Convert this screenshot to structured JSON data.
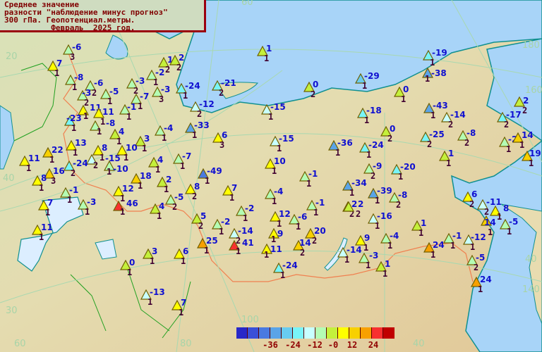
{
  "title": {
    "lines": [
      "Среднее значение",
      "разности \"наблюдение минус прогноз\"",
      "300 гПа. Геопотенциал.метры.",
      "          Февраль  2025 год."
    ]
  },
  "legend": {
    "colors": [
      "#2828c8",
      "#3a50d8",
      "#4a7ae0",
      "#5aa4e8",
      "#68ccf0",
      "#78f4f8",
      "#c8ffff",
      "#b4fcb4",
      "#c4f03c",
      "#ffff00",
      "#f8d000",
      "#f8a000",
      "#f83030",
      "#c00000"
    ],
    "tick_labels": [
      "-36",
      "-24",
      "-12",
      "-0",
      "12",
      "24"
    ]
  },
  "graticule_labels": [
    "20",
    "40",
    "60",
    "100",
    "140",
    "160",
    "180",
    "40",
    "30",
    "60",
    "80",
    "40"
  ],
  "stations": [
    {
      "value": -6,
      "count": 3
    },
    {
      "value": 7,
      "count": 1
    },
    {
      "value": -8,
      "count": 1
    },
    {
      "value": -6,
      "count": 2
    },
    {
      "value": -3,
      "count": 2
    },
    {
      "value": -5,
      "count": 1
    },
    {
      "value": 1,
      "count": 2
    },
    {
      "value": 2,
      "count": 2
    },
    {
      "value": -3,
      "count": 2
    },
    {
      "value": -2,
      "count": 1
    },
    {
      "value": -3,
      "count": 3
    },
    {
      "value": -7,
      "count": 1
    },
    {
      "value": -1,
      "count": 1
    },
    {
      "value": 11,
      "count": 1
    },
    {
      "value": 11,
      "count": 1
    },
    {
      "value": -23,
      "count": 1
    },
    {
      "value": -8,
      "count": 1
    },
    {
      "value": 4,
      "count": 1
    },
    {
      "value": 3,
      "count": 1
    },
    {
      "value": -4,
      "count": 1
    },
    {
      "value": 13,
      "count": 1
    },
    {
      "value": 8,
      "count": 1
    },
    {
      "value": -15,
      "count": 2
    },
    {
      "value": 10,
      "count": 1
    },
    {
      "value": 22,
      "count": 1
    },
    {
      "value": 11,
      "count": 1
    },
    {
      "value": -24,
      "count": 2
    },
    {
      "value": -10,
      "count": 1
    },
    {
      "value": 4,
      "count": 1
    },
    {
      "value": 16,
      "count": 3
    },
    {
      "value": 8,
      "count": 1
    },
    {
      "value": 18,
      "count": 1
    },
    {
      "value": 2,
      "count": 1
    },
    {
      "value": -1,
      "count": 1
    },
    {
      "value": -3,
      "count": 1
    },
    {
      "value": 7,
      "count": 1
    },
    {
      "value": 11,
      "count": 1
    },
    {
      "value": 12,
      "count": 1
    },
    {
      "value": 46,
      "count": 1
    },
    {
      "value": -5,
      "count": 2
    },
    {
      "value": 4,
      "count": 1
    },
    {
      "value": 3,
      "count": 1
    },
    {
      "value": 6,
      "count": 1
    },
    {
      "value": 0,
      "count": 1
    },
    {
      "value": -13,
      "count": 1
    },
    {
      "value": 7,
      "count": 1
    },
    {
      "value": 1,
      "count": 1
    },
    {
      "value": -24,
      "count": 1
    },
    {
      "value": -21,
      "count": 2
    },
    {
      "value": -12,
      "count": 2
    },
    {
      "value": 0,
      "count": 2
    },
    {
      "value": -15,
      "count": 1
    },
    {
      "value": -33,
      "count": 1
    },
    {
      "value": 6,
      "count": 3
    },
    {
      "value": -15,
      "count": 1
    },
    {
      "value": -36,
      "count": 1
    },
    {
      "value": -7,
      "count": 1
    },
    {
      "value": 10,
      "count": 1
    },
    {
      "value": -49,
      "count": 1
    },
    {
      "value": -1,
      "count": 1
    },
    {
      "value": 8,
      "count": 2
    },
    {
      "value": 7,
      "count": 1
    },
    {
      "value": -4,
      "count": 1
    },
    {
      "value": -1,
      "count": 1
    },
    {
      "value": 2,
      "count": 2
    },
    {
      "value": -2,
      "count": 1
    },
    {
      "value": 5,
      "count": 2
    },
    {
      "value": -2,
      "count": 1
    },
    {
      "value": 12,
      "count": 1
    },
    {
      "value": -6,
      "count": 1
    },
    {
      "value": -14,
      "count": 2
    },
    {
      "value": 9,
      "count": 1
    },
    {
      "value": 20,
      "count": 2
    },
    {
      "value": 25,
      "count": 1
    },
    {
      "value": 41,
      "count": 1
    },
    {
      "value": 14,
      "count": 2
    },
    {
      "value": 11,
      "count": 1
    },
    {
      "value": -14,
      "count": 1
    },
    {
      "value": -24,
      "count": 1
    },
    {
      "value": -19,
      "count": 1
    },
    {
      "value": -38,
      "count": 1
    },
    {
      "value": -29,
      "count": 1
    },
    {
      "value": 0,
      "count": 1
    },
    {
      "value": -18,
      "count": 1
    },
    {
      "value": -43,
      "count": 1
    },
    {
      "value": -14,
      "count": 2
    },
    {
      "value": -17,
      "count": 2
    },
    {
      "value": 2,
      "count": 2
    },
    {
      "value": 0,
      "count": 2
    },
    {
      "value": -25,
      "count": 2
    },
    {
      "value": -8,
      "count": 2
    },
    {
      "value": -24,
      "count": 1
    },
    {
      "value": -2,
      "count": 1
    },
    {
      "value": 14,
      "count": 1
    },
    {
      "value": 1,
      "count": 1
    },
    {
      "value": 19,
      "count": 1
    },
    {
      "value": -9,
      "count": 2
    },
    {
      "value": -20,
      "count": 1
    },
    {
      "value": -34,
      "count": 1
    },
    {
      "value": -39,
      "count": 1
    },
    {
      "value": -8,
      "count": 2
    },
    {
      "value": 2,
      "count": 2
    },
    {
      "value": -16,
      "count": 1
    },
    {
      "value": 1,
      "count": 1
    },
    {
      "value": 6,
      "count": 2
    },
    {
      "value": -11,
      "count": 2
    },
    {
      "value": 8,
      "count": 1
    },
    {
      "value": 14,
      "count": 1
    },
    {
      "value": -5,
      "count": 1
    },
    {
      "value": 9,
      "count": 1
    },
    {
      "value": -4,
      "count": 1
    },
    {
      "value": -1,
      "count": 1
    },
    {
      "value": -12,
      "count": 1
    },
    {
      "value": 24,
      "count": 1
    },
    {
      "value": -3,
      "count": 1
    },
    {
      "value": -5,
      "count": 2
    },
    {
      "value": 1,
      "count": 1
    },
    {
      "value": 24,
      "count": 1
    }
  ]
}
